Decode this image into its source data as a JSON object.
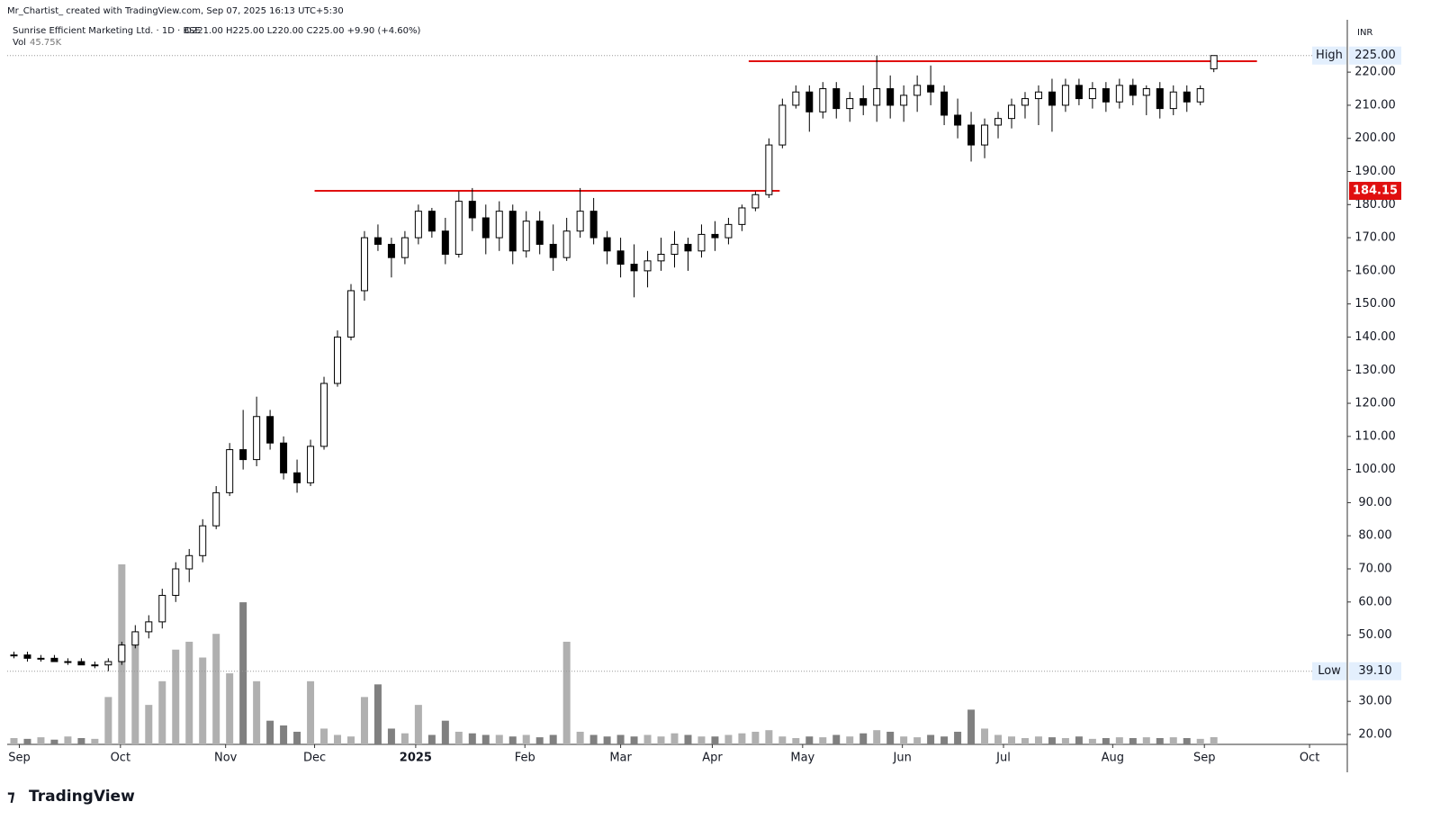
{
  "header": {
    "credit": "Mr_Chartist_ created with TradingView.com, Sep 07, 2025 16:13 UTC+5:30",
    "symbol": "Sunrise Efficient Marketing Ltd. · 1D · BSE",
    "ohlc": "O221.00 H225.00 L220.00 C225.00 +9.90 (+4.60%)",
    "vol_label": "Vol",
    "vol_value": "45.75K",
    "currency": "INR",
    "brand": "TradingView"
  },
  "chart_data": {
    "type": "candlestick",
    "up_color": "#ffffff",
    "down_color": "#000000",
    "volume_color": "#b0b0b0",
    "level_color": "#e01010",
    "open": [
      44,
      44,
      43,
      43,
      42,
      42,
      41,
      41,
      42,
      47,
      51,
      54,
      62,
      70,
      74,
      83,
      93,
      106,
      103,
      116,
      108,
      99,
      96,
      107,
      126,
      140,
      154,
      170,
      168,
      164,
      170,
      178,
      172,
      165,
      181,
      176,
      170,
      178,
      166,
      175,
      168,
      164,
      172,
      178,
      170,
      166,
      162,
      160,
      163,
      165,
      168,
      166,
      171,
      170,
      174,
      179,
      183,
      198,
      210,
      214,
      208,
      215,
      209,
      212,
      210,
      215,
      210,
      213,
      216,
      214,
      207,
      204,
      198,
      204,
      206,
      210,
      212,
      214,
      210,
      216,
      212,
      215,
      211,
      216,
      213,
      215,
      209,
      214,
      211,
      221
    ],
    "high": [
      45,
      45,
      44,
      44,
      43,
      43,
      42,
      43,
      48,
      53,
      56,
      64,
      72,
      76,
      85,
      95,
      108,
      118,
      122,
      118,
      110,
      103,
      109,
      128,
      142,
      156,
      172,
      174,
      170,
      172,
      180,
      179,
      176,
      184,
      185,
      180,
      181,
      180,
      178,
      178,
      174,
      176,
      185,
      182,
      172,
      170,
      168,
      166,
      170,
      172,
      170,
      174,
      175,
      176,
      180,
      184,
      200,
      212,
      216,
      216,
      217,
      217,
      214,
      216,
      225,
      219,
      216,
      219,
      222,
      216,
      212,
      208,
      206,
      208,
      212,
      214,
      216,
      218,
      218,
      218,
      217,
      217,
      218,
      218,
      216,
      217,
      216,
      216,
      216,
      225
    ],
    "low": [
      43,
      42,
      42,
      42,
      41,
      41,
      40,
      39.1,
      41,
      46,
      49,
      52,
      60,
      66,
      72,
      82,
      92,
      100,
      101,
      106,
      97,
      93,
      95,
      106,
      125,
      139,
      151,
      166,
      158,
      162,
      168,
      170,
      162,
      164,
      172,
      165,
      166,
      162,
      164,
      165,
      160,
      163,
      170,
      168,
      162,
      158,
      152,
      155,
      160,
      161,
      160,
      164,
      166,
      168,
      172,
      178,
      182,
      197,
      209,
      202,
      206,
      206,
      205,
      207,
      205,
      206,
      205,
      208,
      210,
      204,
      200,
      193,
      194,
      200,
      203,
      206,
      204,
      202,
      208,
      210,
      209,
      208,
      209,
      210,
      207,
      206,
      207,
      208,
      210,
      220
    ],
    "close": [
      44,
      43,
      43,
      42,
      42,
      41,
      41,
      42,
      47,
      51,
      54,
      62,
      70,
      74,
      83,
      93,
      106,
      103,
      116,
      108,
      99,
      96,
      107,
      126,
      140,
      154,
      170,
      168,
      164,
      170,
      178,
      172,
      165,
      181,
      176,
      170,
      178,
      166,
      175,
      168,
      164,
      172,
      178,
      170,
      166,
      162,
      160,
      163,
      165,
      168,
      166,
      171,
      170,
      174,
      179,
      183,
      198,
      210,
      214,
      208,
      215,
      209,
      212,
      210,
      215,
      210,
      213,
      216,
      214,
      207,
      204,
      198,
      204,
      206,
      210,
      212,
      214,
      210,
      216,
      212,
      215,
      211,
      216,
      213,
      215,
      209,
      214,
      211,
      215,
      225
    ],
    "volume": [
      40,
      35,
      45,
      30,
      50,
      40,
      35,
      300,
      1140,
      700,
      250,
      400,
      600,
      650,
      550,
      700,
      450,
      900,
      400,
      150,
      120,
      80,
      400,
      100,
      60,
      50,
      300,
      380,
      100,
      70,
      250,
      60,
      150,
      80,
      70,
      60,
      60,
      50,
      60,
      45,
      60,
      650,
      80,
      60,
      50,
      60,
      50,
      60,
      50,
      70,
      60,
      50,
      50,
      60,
      70,
      80,
      90,
      50,
      40,
      50,
      45,
      60,
      50,
      70,
      90,
      80,
      50,
      45,
      60,
      50,
      80,
      220,
      100,
      60,
      50,
      40,
      50,
      45,
      40,
      50,
      35,
      40,
      45,
      40,
      45,
      40,
      45,
      40,
      35,
      45.75
    ],
    "xlim": [
      -0.5,
      98.9
    ],
    "xticks": [
      {
        "value": 0.4,
        "label": "Sep"
      },
      {
        "value": 7.9,
        "label": "Oct"
      },
      {
        "value": 15.7,
        "label": "Nov"
      },
      {
        "value": 22.3,
        "label": "Dec"
      },
      {
        "value": 29.8,
        "label": "2025"
      },
      {
        "value": 37.9,
        "label": "Feb"
      },
      {
        "value": 45,
        "label": "Mar"
      },
      {
        "value": 51.8,
        "label": "Apr"
      },
      {
        "value": 58.5,
        "label": "May"
      },
      {
        "value": 65.9,
        "label": "Jun"
      },
      {
        "value": 73.4,
        "label": "Jul"
      },
      {
        "value": 81.5,
        "label": "Aug"
      },
      {
        "value": 88.3,
        "label": "Sep"
      },
      {
        "value": 96.1,
        "label": "Oct"
      }
    ],
    "ylim": [
      17,
      235.8
    ],
    "yticks": [
      {
        "value": 20,
        "label": "20.00"
      },
      {
        "value": 30,
        "label": "30.00"
      },
      {
        "value": 50,
        "label": "50.00"
      },
      {
        "value": 60,
        "label": "60.00"
      },
      {
        "value": 70,
        "label": "70.00"
      },
      {
        "value": 80,
        "label": "80.00"
      },
      {
        "value": 90,
        "label": "90.00"
      },
      {
        "value": 100,
        "label": "100.00"
      },
      {
        "value": 110,
        "label": "110.00"
      },
      {
        "value": 120,
        "label": "120.00"
      },
      {
        "value": 130,
        "label": "130.00"
      },
      {
        "value": 140,
        "label": "140.00"
      },
      {
        "value": 150,
        "label": "150.00"
      },
      {
        "value": 160,
        "label": "160.00"
      },
      {
        "value": 170,
        "label": "170.00"
      },
      {
        "value": 180,
        "label": "180.00"
      },
      {
        "value": 190,
        "label": "190.00"
      },
      {
        "value": 200,
        "label": "200.00"
      },
      {
        "value": 210,
        "label": "210.00"
      },
      {
        "value": 220,
        "label": "220.00"
      }
    ],
    "levels": [
      {
        "value": 184.15,
        "label": "184.15",
        "x": [
          22.3,
          56.8
        ]
      },
      {
        "value": 223.3,
        "x": [
          54.5,
          92.2
        ]
      }
    ],
    "extremes": [
      {
        "name": "High",
        "value": 225,
        "label": "225.00"
      },
      {
        "name": "Low",
        "value": 39.1,
        "label": "39.10"
      }
    ]
  }
}
